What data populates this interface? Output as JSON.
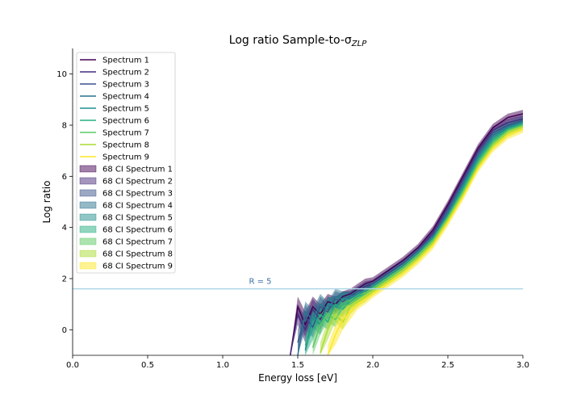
{
  "chart_data": {
    "type": "line",
    "title": "Log ratio Sample-to-σ",
    "title_subscript": "ZLP",
    "xlabel": "Energy loss [eV]",
    "ylabel": "Log ratio",
    "xlim": [
      0.0,
      3.0
    ],
    "ylim": [
      -1.0,
      11.0
    ],
    "xticks": [
      0.0,
      0.5,
      1.0,
      1.5,
      2.0,
      2.5,
      3.0
    ],
    "xtick_labels": [
      "0.0",
      "0.5",
      "1.0",
      "1.5",
      "2.0",
      "2.5",
      "3.0"
    ],
    "yticks": [
      0,
      2,
      4,
      6,
      8,
      10
    ],
    "ytick_labels": [
      "0",
      "2",
      "4",
      "6",
      "8",
      "10"
    ],
    "grid": false,
    "legend_position": "top-left",
    "hline": {
      "y": 1.6,
      "label": "R = 5",
      "label_x": 1.25,
      "color": "#add8e6"
    },
    "x": [
      1.45,
      1.5,
      1.55,
      1.6,
      1.65,
      1.7,
      1.75,
      1.8,
      1.85,
      1.9,
      1.95,
      2.0,
      2.1,
      2.2,
      2.3,
      2.4,
      2.5,
      2.6,
      2.7,
      2.8,
      2.9,
      3.0
    ],
    "series": [
      {
        "name": "Spectrum 1",
        "color": "#440154",
        "values": [
          -1.0,
          0.9,
          0.2,
          0.9,
          0.6,
          1.1,
          1.0,
          1.3,
          1.4,
          1.6,
          1.8,
          1.9,
          2.3,
          2.7,
          3.2,
          3.9,
          4.9,
          6.0,
          7.1,
          7.9,
          8.3,
          8.45
        ]
      },
      {
        "name": "Spectrum 2",
        "color": "#472c7a",
        "values": [
          -1.0,
          0.6,
          0.0,
          0.8,
          0.4,
          1.0,
          0.9,
          1.2,
          1.3,
          1.5,
          1.7,
          1.8,
          2.2,
          2.6,
          3.1,
          3.8,
          4.8,
          5.9,
          7.0,
          7.8,
          8.1,
          8.25
        ]
      },
      {
        "name": "Spectrum 3",
        "color": "#3b518b",
        "values": [
          null,
          -0.5,
          0.5,
          0.1,
          0.9,
          0.7,
          1.2,
          1.1,
          1.3,
          1.5,
          1.6,
          1.8,
          2.2,
          2.6,
          3.1,
          3.7,
          4.7,
          5.8,
          6.9,
          7.7,
          8.0,
          8.2
        ]
      },
      {
        "name": "Spectrum 4",
        "color": "#2c718e",
        "values": [
          null,
          -1.0,
          0.7,
          0.4,
          1.0,
          0.8,
          1.3,
          1.2,
          1.3,
          1.4,
          1.6,
          1.7,
          2.1,
          2.5,
          3.0,
          3.6,
          4.6,
          5.7,
          6.8,
          7.6,
          7.95,
          8.15
        ]
      },
      {
        "name": "Spectrum 5",
        "color": "#21908d",
        "values": [
          null,
          null,
          -0.8,
          0.5,
          0.2,
          1.0,
          0.9,
          1.2,
          1.2,
          1.4,
          1.5,
          1.7,
          2.1,
          2.5,
          3.0,
          3.6,
          4.5,
          5.6,
          6.7,
          7.5,
          7.9,
          8.1
        ]
      },
      {
        "name": "Spectrum 6",
        "color": "#27ad81",
        "values": [
          null,
          null,
          -0.6,
          0.0,
          0.6,
          0.3,
          1.0,
          0.8,
          1.1,
          1.3,
          1.4,
          1.6,
          2.0,
          2.4,
          2.9,
          3.5,
          4.4,
          5.5,
          6.6,
          7.4,
          7.85,
          8.05
        ]
      },
      {
        "name": "Spectrum 7",
        "color": "#5cc863",
        "values": [
          null,
          null,
          null,
          -0.7,
          0.2,
          0.6,
          0.4,
          0.9,
          1.0,
          1.2,
          1.4,
          1.6,
          2.0,
          2.4,
          2.9,
          3.5,
          4.4,
          5.4,
          6.5,
          7.3,
          7.8,
          8.0
        ]
      },
      {
        "name": "Spectrum 8",
        "color": "#aadc32",
        "values": [
          null,
          null,
          null,
          null,
          -0.9,
          0.0,
          0.6,
          0.3,
          0.9,
          1.1,
          1.3,
          1.5,
          1.9,
          2.3,
          2.8,
          3.4,
          4.3,
          5.3,
          6.4,
          7.2,
          7.7,
          7.95
        ]
      },
      {
        "name": "Spectrum 9",
        "color": "#fde725",
        "values": [
          null,
          null,
          null,
          null,
          null,
          -1.0,
          -0.2,
          0.4,
          0.7,
          1.0,
          1.2,
          1.4,
          1.8,
          2.2,
          2.7,
          3.3,
          4.2,
          5.2,
          6.3,
          7.1,
          7.6,
          7.85
        ]
      }
    ],
    "ci_series": [
      {
        "name": "68 CI Spectrum 1",
        "color": "#440154",
        "lower": [
          -1.0,
          0.5,
          -0.3,
          0.5,
          0.2,
          0.8,
          0.7,
          1.0,
          1.2,
          1.4,
          1.6,
          1.75,
          2.15,
          2.55,
          3.05,
          3.75,
          4.75,
          5.85,
          6.95,
          7.75,
          8.15,
          8.3
        ],
        "upper": [
          -1.0,
          1.3,
          0.7,
          1.3,
          1.0,
          1.4,
          1.3,
          1.5,
          1.6,
          1.8,
          2.0,
          2.05,
          2.45,
          2.85,
          3.35,
          4.05,
          5.05,
          6.15,
          7.25,
          8.05,
          8.45,
          8.6
        ]
      },
      {
        "name": "68 CI Spectrum 2",
        "color": "#472c7a",
        "lower": [
          -1.0,
          0.2,
          -0.5,
          0.4,
          0.0,
          0.7,
          0.6,
          0.9,
          1.1,
          1.3,
          1.5,
          1.65,
          2.05,
          2.45,
          2.95,
          3.65,
          4.65,
          5.75,
          6.85,
          7.65,
          7.95,
          8.1
        ],
        "upper": [
          -1.0,
          1.0,
          0.5,
          1.2,
          0.8,
          1.3,
          1.2,
          1.5,
          1.5,
          1.7,
          1.9,
          1.95,
          2.35,
          2.75,
          3.25,
          3.95,
          4.95,
          6.05,
          7.15,
          7.95,
          8.25,
          8.4
        ]
      },
      {
        "name": "68 CI Spectrum 3",
        "color": "#3b518b",
        "lower": [
          null,
          -1.0,
          0.0,
          -0.3,
          0.5,
          0.4,
          0.9,
          0.8,
          1.1,
          1.3,
          1.4,
          1.65,
          2.05,
          2.45,
          2.95,
          3.55,
          4.55,
          5.65,
          6.75,
          7.55,
          7.85,
          8.05
        ],
        "upper": [
          null,
          0.0,
          1.0,
          0.5,
          1.3,
          1.0,
          1.5,
          1.4,
          1.5,
          1.7,
          1.8,
          1.95,
          2.35,
          2.75,
          3.25,
          3.85,
          4.85,
          5.95,
          7.05,
          7.85,
          8.15,
          8.35
        ]
      },
      {
        "name": "68 CI Spectrum 4",
        "color": "#2c718e",
        "lower": [
          null,
          -1.0,
          0.3,
          0.0,
          0.6,
          0.5,
          1.0,
          0.9,
          1.1,
          1.2,
          1.4,
          1.55,
          1.95,
          2.35,
          2.85,
          3.45,
          4.45,
          5.55,
          6.65,
          7.45,
          7.8,
          8.0
        ],
        "upper": [
          null,
          -0.5,
          1.1,
          0.8,
          1.4,
          1.1,
          1.6,
          1.5,
          1.5,
          1.6,
          1.8,
          1.85,
          2.25,
          2.65,
          3.15,
          3.75,
          4.75,
          5.85,
          6.95,
          7.75,
          8.1,
          8.3
        ]
      },
      {
        "name": "68 CI Spectrum 5",
        "color": "#21908d",
        "lower": [
          null,
          null,
          -1.0,
          0.1,
          -0.2,
          0.7,
          0.6,
          0.9,
          1.0,
          1.2,
          1.3,
          1.55,
          1.95,
          2.35,
          2.85,
          3.45,
          4.35,
          5.45,
          6.55,
          7.35,
          7.75,
          7.95
        ],
        "upper": [
          null,
          null,
          -0.4,
          0.9,
          0.6,
          1.3,
          1.2,
          1.5,
          1.4,
          1.6,
          1.7,
          1.85,
          2.25,
          2.65,
          3.15,
          3.75,
          4.65,
          5.75,
          6.85,
          7.65,
          8.05,
          8.25
        ]
      },
      {
        "name": "68 CI Spectrum 6",
        "color": "#27ad81",
        "lower": [
          null,
          null,
          -1.0,
          -0.4,
          0.2,
          0.0,
          0.7,
          0.5,
          0.9,
          1.1,
          1.2,
          1.45,
          1.85,
          2.25,
          2.75,
          3.35,
          4.25,
          5.35,
          6.45,
          7.25,
          7.7,
          7.9
        ],
        "upper": [
          null,
          null,
          -0.2,
          0.4,
          1.0,
          0.6,
          1.3,
          1.1,
          1.3,
          1.5,
          1.6,
          1.75,
          2.15,
          2.55,
          3.05,
          3.65,
          4.55,
          5.65,
          6.75,
          7.55,
          8.0,
          8.2
        ]
      },
      {
        "name": "68 CI Spectrum 7",
        "color": "#5cc863",
        "lower": [
          null,
          null,
          null,
          -1.0,
          -0.2,
          0.3,
          0.1,
          0.6,
          0.8,
          1.0,
          1.2,
          1.45,
          1.85,
          2.25,
          2.75,
          3.35,
          4.25,
          5.25,
          6.35,
          7.15,
          7.65,
          7.85
        ],
        "upper": [
          null,
          null,
          null,
          -0.3,
          0.6,
          0.9,
          0.7,
          1.2,
          1.2,
          1.4,
          1.6,
          1.75,
          2.15,
          2.55,
          3.05,
          3.65,
          4.55,
          5.55,
          6.65,
          7.45,
          7.95,
          8.15
        ]
      },
      {
        "name": "68 CI Spectrum 8",
        "color": "#aadc32",
        "lower": [
          null,
          null,
          null,
          null,
          -1.0,
          -0.4,
          0.3,
          0.0,
          0.6,
          0.9,
          1.1,
          1.35,
          1.75,
          2.15,
          2.65,
          3.25,
          4.15,
          5.15,
          6.25,
          7.05,
          7.55,
          7.8
        ],
        "upper": [
          null,
          null,
          null,
          null,
          -0.5,
          0.4,
          0.9,
          0.6,
          1.2,
          1.3,
          1.5,
          1.65,
          2.05,
          2.45,
          2.95,
          3.55,
          4.45,
          5.45,
          6.55,
          7.35,
          7.85,
          8.1
        ]
      },
      {
        "name": "68 CI Spectrum 9",
        "color": "#fde725",
        "lower": [
          null,
          null,
          null,
          null,
          null,
          -1.0,
          -0.6,
          0.0,
          0.4,
          0.8,
          1.0,
          1.25,
          1.65,
          2.05,
          2.55,
          3.15,
          4.05,
          5.05,
          6.15,
          6.95,
          7.45,
          7.7
        ],
        "upper": [
          null,
          null,
          null,
          null,
          null,
          -0.6,
          0.2,
          0.8,
          1.0,
          1.2,
          1.4,
          1.55,
          1.95,
          2.35,
          2.85,
          3.45,
          4.35,
          5.35,
          6.45,
          7.25,
          7.75,
          8.0
        ]
      }
    ]
  }
}
